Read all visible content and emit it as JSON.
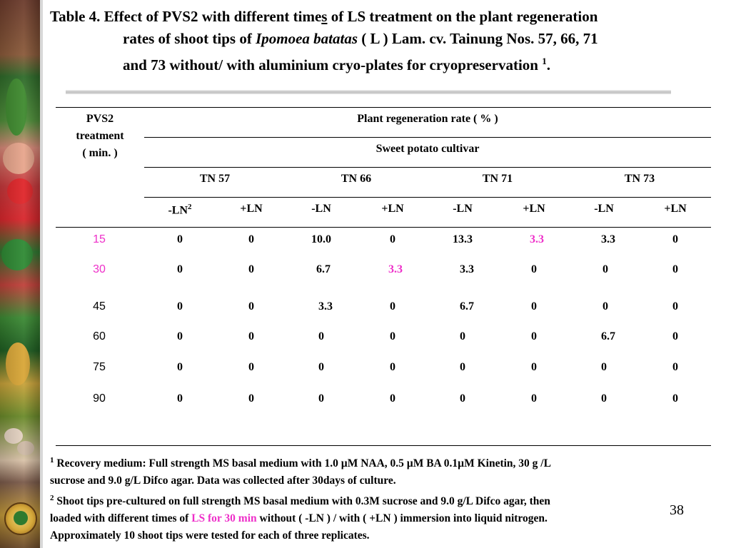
{
  "title": {
    "prefix": "Table 4. Effect of PVS2 with different time",
    "underlined_s": "s",
    "after_s": " of LS treatment on the plant regeneration",
    "line2a": "rates of shoot tips of ",
    "species": "Ipomoea batatas",
    "line2b": " ( L ) Lam. cv.  Tainung Nos. 57, 66, 71",
    "line3": "and 73 without/ with aluminium cryo-plates for cryopreservation ",
    "line3_sup": "1",
    "line3_end": "."
  },
  "table": {
    "row_header": [
      "PVS2",
      "treatment",
      "( min. )"
    ],
    "main_header": "Plant regeneration rate ( % )",
    "sub_header": "Sweet potato cultivar",
    "cultivars": [
      "TN 57",
      "TN 66",
      "TN 71",
      "TN 73"
    ],
    "ln_headers": [
      "-LN",
      "+LN",
      "-LN",
      "+LN",
      "-LN",
      "+LN",
      "-LN",
      "+LN"
    ],
    "ln_sup": "2",
    "rows": [
      {
        "time": "15",
        "values": [
          "0",
          "0",
          "10.0",
          "0",
          "13.3",
          "3.3",
          "3.3",
          "0"
        ]
      },
      {
        "time": "30",
        "values": [
          "0",
          "0",
          "6.7",
          "3.3",
          "3.3",
          "0",
          "0",
          "0"
        ]
      },
      {
        "time": "45",
        "values": [
          "0",
          "0",
          "3.3",
          "0",
          "6.7",
          "0",
          "0",
          "0"
        ]
      },
      {
        "time": "60",
        "values": [
          "0",
          "0",
          "0",
          "0",
          "0",
          "0",
          "6.7",
          "0"
        ]
      },
      {
        "time": "75",
        "values": [
          "0",
          "0",
          "0",
          "0",
          "0",
          "0",
          "0",
          "0"
        ]
      },
      {
        "time": "90",
        "values": [
          "0",
          "0",
          "0",
          "0",
          "0",
          "0",
          "0",
          "0"
        ]
      }
    ],
    "highlight_color": "#ee2fc9"
  },
  "footnotes": {
    "n1_sup": "1",
    "n1_line1": " Recovery medium: Full strength MS basal medium with 1.0 µM NAA, 0.5 µM BA 0.1µM Kinetin, 30 g /L",
    "n1_line2": "sucrose and 9.0 g/L Difco agar. Data was collected after 30days of culture.",
    "n2_sup": "2",
    "n2_line1": " Shoot tips pre-cultured on full strength MS basal medium with 0.3M sucrose and 9.0 g/L Difco agar, then",
    "n2_line2a": "loaded with different times of  ",
    "n2_highlight": "LS for 30 min",
    "n2_line2b": " without ( -LN ) / with ( +LN ) immersion into liquid nitrogen.",
    "n2_line3": "Approximately 10 shoot tips were tested for each of three replicates."
  },
  "slide_number": "38"
}
